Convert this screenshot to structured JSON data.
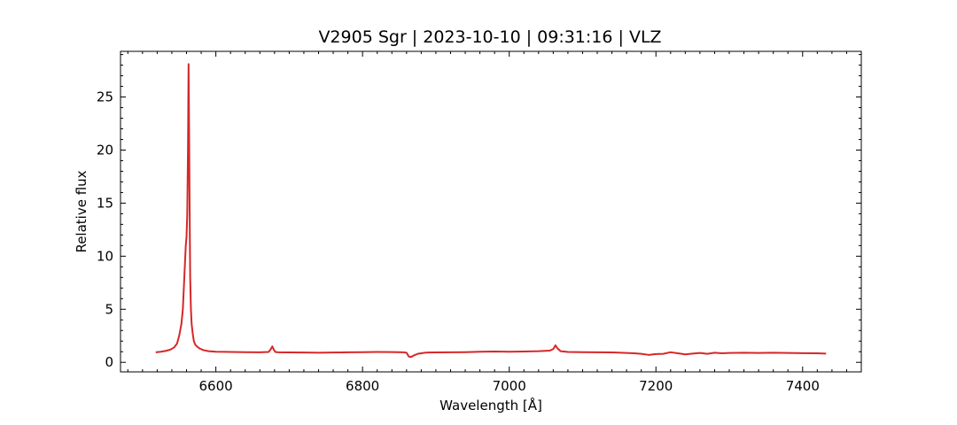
{
  "chart_data": {
    "type": "line",
    "title": "V2905 Sgr | 2023-10-10 | 09:31:16 | VLZ",
    "xlabel": "Wavelength [Å]",
    "ylabel": "Relative flux",
    "xlim": [
      6470,
      7480
    ],
    "ylim": [
      -0.9,
      29.3
    ],
    "xticks": [
      6600,
      6800,
      7000,
      7200,
      7400
    ],
    "yticks": [
      0,
      5,
      10,
      15,
      20,
      25
    ],
    "x_minor_step": 20,
    "y_minor_step": 1,
    "grid": false,
    "legend": "none",
    "colors": {
      "line": "#d62728",
      "axes": "#000000"
    },
    "series": [
      {
        "x": [
          6518,
          6525,
          6532,
          6538,
          6543,
          6547,
          6550,
          6553,
          6555,
          6557,
          6559,
          6560,
          6561,
          6562,
          6562.8,
          6563.5,
          6564.3,
          6565,
          6566,
          6567,
          6568.5,
          6570,
          6572,
          6575,
          6578,
          6583,
          6590,
          6600,
          6620,
          6640,
          6660,
          6672,
          6675,
          6677,
          6679,
          6681,
          6685,
          6700,
          6720,
          6740,
          6760,
          6780,
          6800,
          6820,
          6840,
          6855,
          6860,
          6863,
          6866,
          6870,
          6875,
          6880,
          6885,
          6890,
          6900,
          6920,
          6940,
          6960,
          6980,
          7000,
          7020,
          7040,
          7055,
          7060,
          7063,
          7066,
          7070,
          7080,
          7100,
          7120,
          7140,
          7160,
          7170,
          7180,
          7190,
          7200,
          7210,
          7220,
          7230,
          7240,
          7250,
          7260,
          7270,
          7280,
          7290,
          7300,
          7320,
          7340,
          7360,
          7380,
          7400,
          7420,
          7432
        ],
        "values": [
          0.95,
          1.0,
          1.08,
          1.2,
          1.4,
          1.75,
          2.5,
          3.6,
          5.0,
          8.0,
          11.0,
          11.8,
          14.0,
          20.0,
          28.1,
          22.0,
          14.0,
          8.0,
          5.0,
          3.6,
          2.7,
          2.0,
          1.65,
          1.45,
          1.3,
          1.15,
          1.05,
          1.0,
          0.98,
          0.96,
          0.95,
          0.98,
          1.25,
          1.5,
          1.2,
          0.98,
          0.95,
          0.93,
          0.92,
          0.9,
          0.92,
          0.95,
          0.96,
          0.98,
          0.97,
          0.95,
          0.9,
          0.55,
          0.5,
          0.65,
          0.8,
          0.85,
          0.9,
          0.92,
          0.94,
          0.95,
          0.96,
          1.0,
          1.02,
          1.0,
          1.02,
          1.05,
          1.1,
          1.25,
          1.6,
          1.3,
          1.05,
          0.98,
          0.96,
          0.95,
          0.93,
          0.88,
          0.85,
          0.8,
          0.7,
          0.78,
          0.8,
          0.95,
          0.85,
          0.75,
          0.82,
          0.88,
          0.8,
          0.9,
          0.85,
          0.88,
          0.9,
          0.88,
          0.9,
          0.88,
          0.86,
          0.85,
          0.82
        ]
      }
    ]
  }
}
